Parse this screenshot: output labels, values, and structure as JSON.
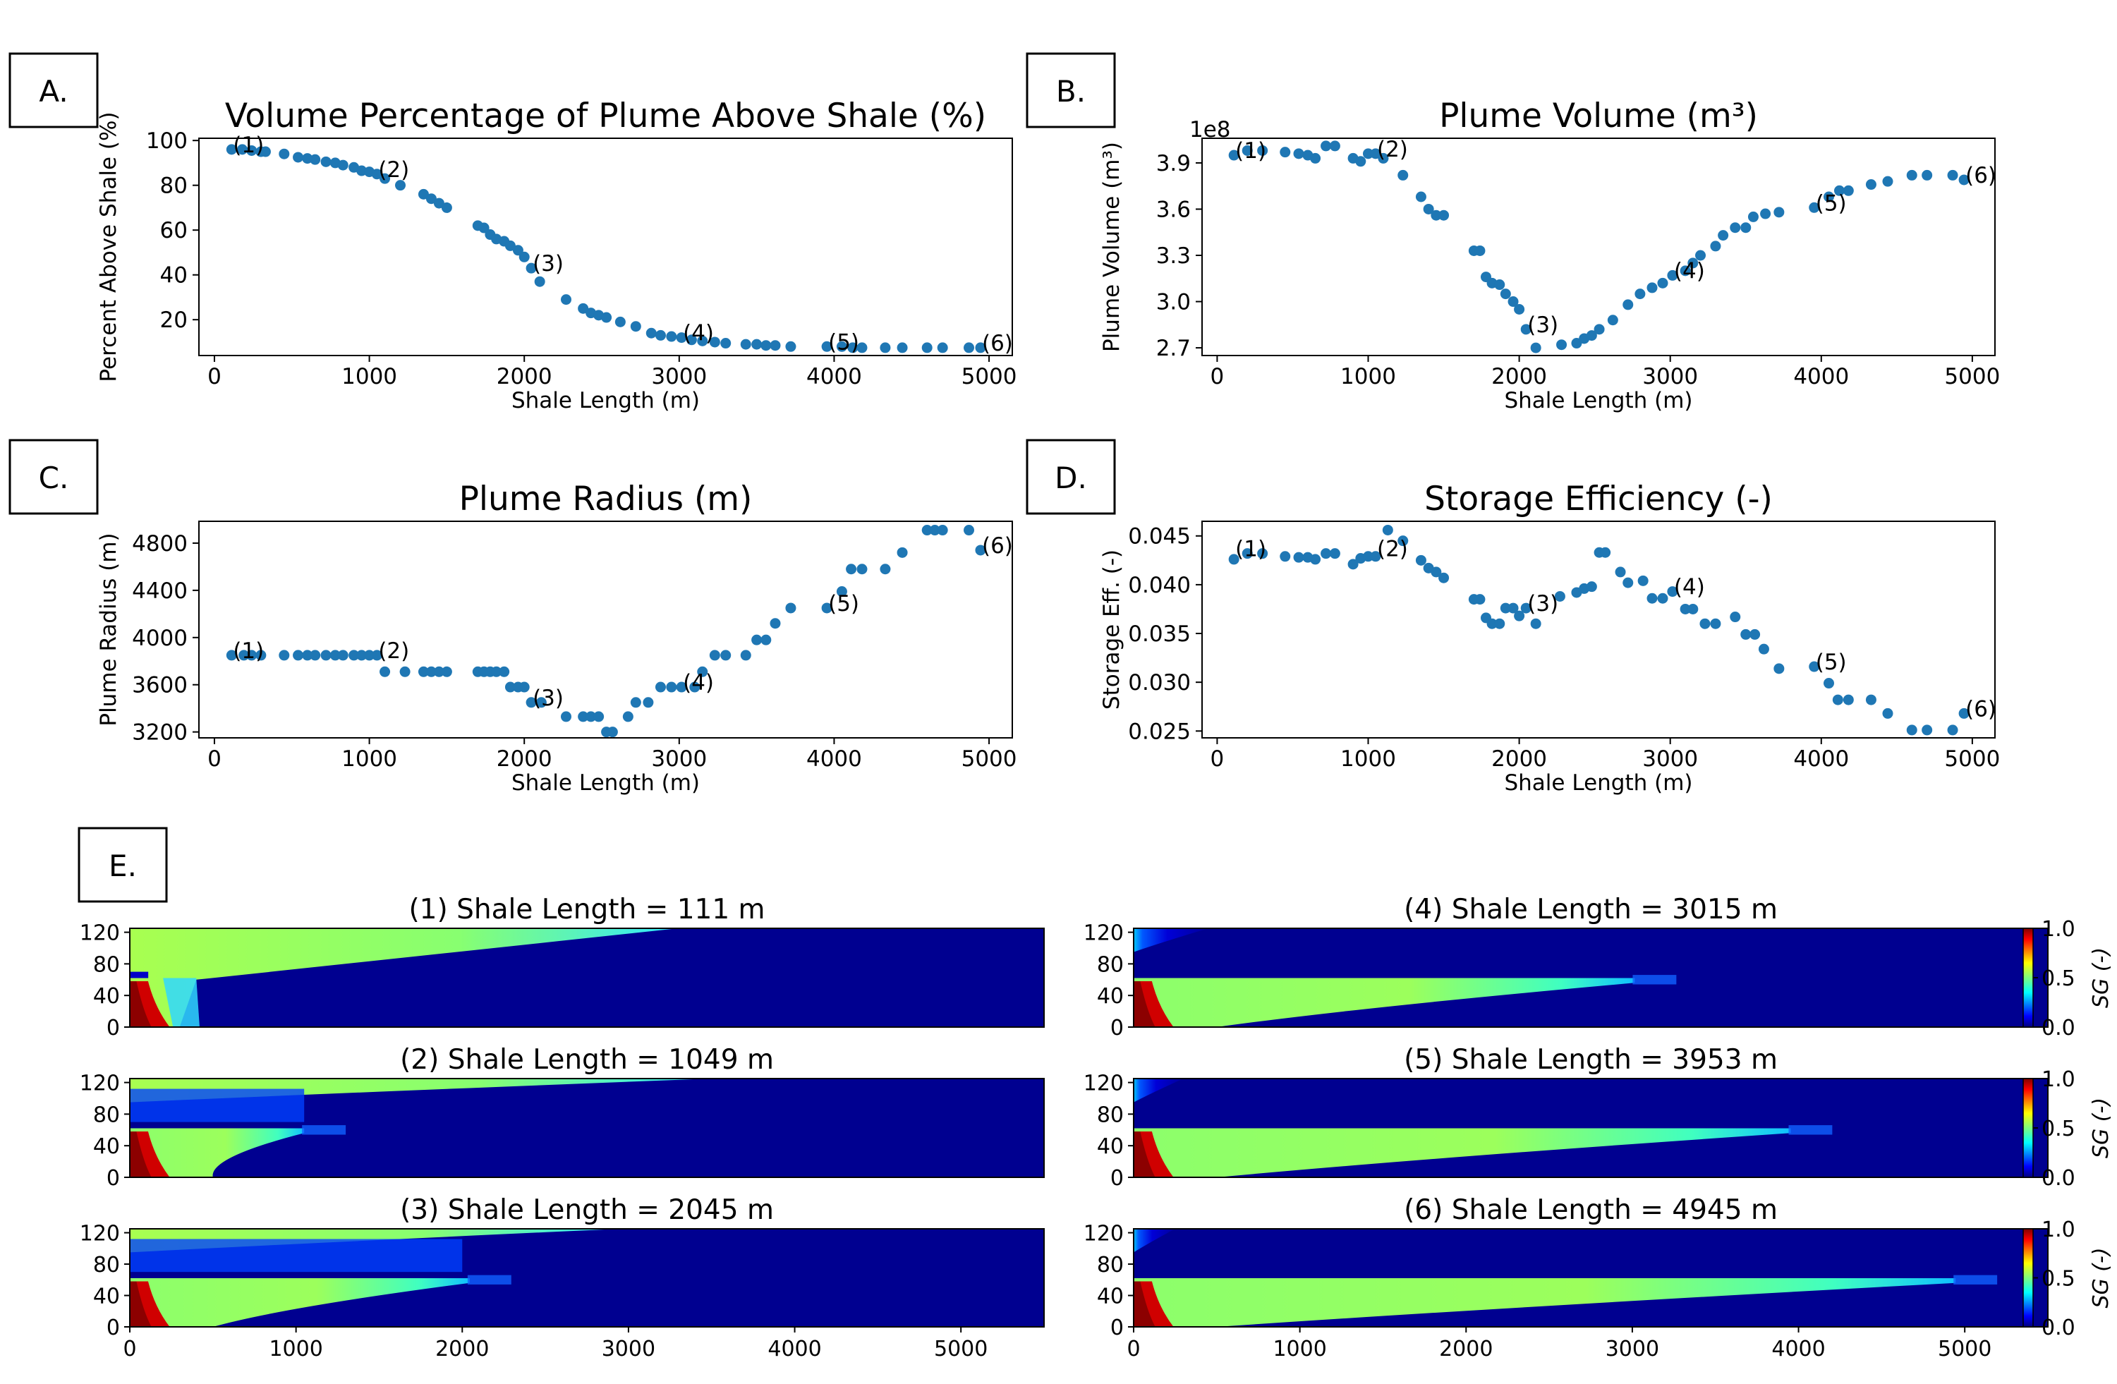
{
  "panel_labels": [
    "A.",
    "B.",
    "C.",
    "D.",
    "E."
  ],
  "colormap": [
    "#00007f",
    "#0000ff",
    "#007fff",
    "#00ffff",
    "#7fff7f",
    "#ffff00",
    "#ff7f00",
    "#ff0000",
    "#7f0000"
  ],
  "colorbar": {
    "label": "SG (-)",
    "ticks": [
      "0.0",
      "0.5",
      "1.0"
    ]
  },
  "chart_data": [
    {
      "type": "scatter",
      "title": "Volume Percentage of Plume Above Shale (%)",
      "xlabel": "Shale Length (m)",
      "ylabel": "Percent Above Shale (%)",
      "xlim": [
        -100,
        5150
      ],
      "ylim": [
        4,
        101
      ],
      "xticks": [
        0,
        1000,
        2000,
        3000,
        4000,
        5000
      ],
      "yticks": [
        20,
        40,
        60,
        80,
        100
      ],
      "color": "#1f77b4",
      "x": [
        111,
        180,
        240,
        300,
        330,
        450,
        540,
        600,
        650,
        720,
        780,
        830,
        900,
        950,
        1000,
        1049,
        1100,
        1200,
        1350,
        1400,
        1450,
        1500,
        1700,
        1740,
        1780,
        1820,
        1870,
        1910,
        1960,
        2000,
        2045,
        2100,
        2270,
        2380,
        2430,
        2480,
        2530,
        2620,
        2720,
        2820,
        2880,
        2950,
        3015,
        3080,
        3150,
        3230,
        3300,
        3430,
        3500,
        3560,
        3620,
        3720,
        3953,
        4050,
        4120,
        4180,
        4330,
        4440,
        4600,
        4700,
        4870,
        4945
      ],
      "y": [
        96,
        96,
        95.5,
        95,
        95,
        94,
        92.5,
        92,
        91.5,
        90.5,
        90,
        89,
        88,
        86.5,
        86,
        85,
        83,
        80,
        76,
        74,
        72,
        70,
        62,
        61,
        58,
        56,
        55,
        53,
        51,
        48,
        43,
        37,
        29,
        25,
        23,
        22,
        21,
        19,
        17,
        14,
        13,
        12.5,
        12,
        11,
        10.5,
        10,
        9.5,
        9,
        9,
        8.5,
        8.5,
        8,
        8,
        8,
        7.5,
        7.5,
        7.5,
        7.5,
        7.5,
        7.5,
        7.5,
        7.5
      ],
      "annotations": [
        {
          "text": "(1)",
          "x": 111,
          "y": 96
        },
        {
          "text": "(2)",
          "x": 1049,
          "y": 85
        },
        {
          "text": "(3)",
          "x": 2045,
          "y": 43
        },
        {
          "text": "(4)",
          "x": 3015,
          "y": 12
        },
        {
          "text": "(5)",
          "x": 3953,
          "y": 8
        },
        {
          "text": "(6)",
          "x": 4945,
          "y": 7.5
        }
      ]
    },
    {
      "type": "scatter",
      "title": "Plume Volume (m³)",
      "offset_text": "1e8",
      "xlabel": "Shale Length (m)",
      "ylabel": "Plume Volume (m³)",
      "xlim": [
        -100,
        5150
      ],
      "ylim": [
        2.65,
        4.06
      ],
      "xticks": [
        0,
        1000,
        2000,
        3000,
        4000,
        5000
      ],
      "yticks": [
        2.7,
        3.0,
        3.3,
        3.6,
        3.9
      ],
      "ytick_labels": [
        "2.7",
        "3.0",
        "3.3",
        "3.6",
        "3.9"
      ],
      "color": "#1f77b4",
      "x": [
        111,
        200,
        300,
        450,
        540,
        600,
        650,
        720,
        780,
        900,
        950,
        1000,
        1049,
        1100,
        1230,
        1350,
        1400,
        1450,
        1500,
        1700,
        1740,
        1780,
        1820,
        1870,
        1910,
        1960,
        2000,
        2045,
        2110,
        2280,
        2380,
        2430,
        2480,
        2530,
        2620,
        2720,
        2800,
        2880,
        2950,
        3015,
        3100,
        3150,
        3200,
        3300,
        3350,
        3430,
        3500,
        3550,
        3630,
        3720,
        3953,
        4050,
        4120,
        4180,
        4330,
        4440,
        4600,
        4700,
        4870,
        4945
      ],
      "y": [
        3.95,
        3.98,
        3.98,
        3.97,
        3.96,
        3.95,
        3.93,
        4.01,
        4.01,
        3.93,
        3.91,
        3.96,
        3.96,
        3.93,
        3.82,
        3.68,
        3.6,
        3.56,
        3.56,
        3.33,
        3.33,
        3.16,
        3.12,
        3.11,
        3.05,
        3.0,
        2.95,
        2.82,
        2.7,
        2.72,
        2.73,
        2.76,
        2.78,
        2.82,
        2.88,
        2.98,
        3.05,
        3.09,
        3.12,
        3.17,
        3.2,
        3.25,
        3.3,
        3.36,
        3.43,
        3.48,
        3.48,
        3.55,
        3.57,
        3.58,
        3.61,
        3.68,
        3.72,
        3.72,
        3.76,
        3.78,
        3.82,
        3.82,
        3.82,
        3.79
      ],
      "annotations": [
        {
          "text": "(1)",
          "x": 111,
          "y": 3.95
        },
        {
          "text": "(2)",
          "x": 1049,
          "y": 3.96
        },
        {
          "text": "(3)",
          "x": 2045,
          "y": 2.82
        },
        {
          "text": "(4)",
          "x": 3015,
          "y": 3.17
        },
        {
          "text": "(5)",
          "x": 3953,
          "y": 3.61
        },
        {
          "text": "(6)",
          "x": 4945,
          "y": 3.79
        }
      ]
    },
    {
      "type": "scatter",
      "title": "Plume Radius (m)",
      "xlabel": "Shale Length (m)",
      "ylabel": "Plume Radius (m)",
      "xlim": [
        -100,
        5150
      ],
      "ylim": [
        3150,
        4985
      ],
      "xticks": [
        0,
        1000,
        2000,
        3000,
        4000,
        5000
      ],
      "yticks": [
        3200,
        3600,
        4000,
        4400,
        4800
      ],
      "color": "#1f77b4",
      "x": [
        111,
        190,
        240,
        300,
        450,
        540,
        600,
        650,
        720,
        780,
        830,
        900,
        950,
        1000,
        1049,
        1100,
        1230,
        1350,
        1400,
        1450,
        1500,
        1700,
        1740,
        1780,
        1820,
        1870,
        1910,
        1960,
        2000,
        2045,
        2110,
        2270,
        2380,
        2430,
        2480,
        2530,
        2570,
        2670,
        2720,
        2800,
        2880,
        2950,
        3015,
        3100,
        3150,
        3230,
        3300,
        3430,
        3500,
        3560,
        3620,
        3720,
        3953,
        4050,
        4110,
        4180,
        4330,
        4440,
        4600,
        4650,
        4700,
        4870,
        4945
      ],
      "y": [
        3850,
        3850,
        3850,
        3850,
        3850,
        3850,
        3850,
        3850,
        3850,
        3850,
        3850,
        3850,
        3850,
        3850,
        3850,
        3710,
        3710,
        3710,
        3710,
        3710,
        3710,
        3710,
        3710,
        3710,
        3710,
        3710,
        3580,
        3580,
        3580,
        3450,
        3450,
        3330,
        3330,
        3330,
        3330,
        3200,
        3200,
        3330,
        3450,
        3450,
        3580,
        3580,
        3580,
        3580,
        3710,
        3850,
        3850,
        3850,
        3980,
        3980,
        4120,
        4250,
        4250,
        4390,
        4580,
        4580,
        4580,
        4720,
        4910,
        4910,
        4910,
        4910,
        4740
      ],
      "annotations": [
        {
          "text": "(1)",
          "x": 111,
          "y": 3850
        },
        {
          "text": "(2)",
          "x": 1049,
          "y": 3850
        },
        {
          "text": "(3)",
          "x": 2045,
          "y": 3450
        },
        {
          "text": "(4)",
          "x": 3015,
          "y": 3580
        },
        {
          "text": "(5)",
          "x": 3953,
          "y": 4250
        },
        {
          "text": "(6)",
          "x": 4945,
          "y": 4740
        }
      ]
    },
    {
      "type": "scatter",
      "title": "Storage Efficiency (-)",
      "xlabel": "Shale Length (m)",
      "ylabel": "Storage Eff. (-)",
      "xlim": [
        -100,
        5150
      ],
      "ylim": [
        0.0243,
        0.0465
      ],
      "xticks": [
        0,
        1000,
        2000,
        3000,
        4000,
        5000
      ],
      "yticks": [
        0.025,
        0.03,
        0.035,
        0.04,
        0.045
      ],
      "ytick_labels": [
        "0.025",
        "0.030",
        "0.035",
        "0.040",
        "0.045"
      ],
      "color": "#1f77b4",
      "x": [
        111,
        200,
        300,
        450,
        540,
        600,
        650,
        720,
        780,
        900,
        950,
        1000,
        1049,
        1130,
        1230,
        1350,
        1400,
        1450,
        1500,
        1700,
        1740,
        1780,
        1820,
        1870,
        1910,
        1960,
        2000,
        2045,
        2110,
        2270,
        2380,
        2430,
        2480,
        2530,
        2570,
        2670,
        2720,
        2820,
        2880,
        2950,
        3015,
        3100,
        3150,
        3230,
        3300,
        3430,
        3500,
        3560,
        3620,
        3720,
        3953,
        4050,
        4110,
        4180,
        4330,
        4440,
        4600,
        4700,
        4870,
        4945
      ],
      "y": [
        0.0426,
        0.0432,
        0.0432,
        0.0429,
        0.0428,
        0.0428,
        0.0426,
        0.0432,
        0.0432,
        0.0421,
        0.0427,
        0.0429,
        0.0429,
        0.0456,
        0.0445,
        0.0425,
        0.0417,
        0.0413,
        0.0407,
        0.0385,
        0.0385,
        0.0366,
        0.036,
        0.036,
        0.0376,
        0.0376,
        0.0368,
        0.0376,
        0.036,
        0.0388,
        0.0392,
        0.0396,
        0.0398,
        0.0433,
        0.0433,
        0.0413,
        0.0402,
        0.0404,
        0.0386,
        0.0386,
        0.0393,
        0.0375,
        0.0375,
        0.036,
        0.036,
        0.0367,
        0.0349,
        0.0349,
        0.0334,
        0.0314,
        0.0316,
        0.0299,
        0.0282,
        0.0282,
        0.0282,
        0.0268,
        0.0251,
        0.0251,
        0.0251,
        0.0268
      ],
      "annotations": [
        {
          "text": "(1)",
          "x": 111,
          "y": 0.0432
        },
        {
          "text": "(2)",
          "x": 1049,
          "y": 0.0432
        },
        {
          "text": "(3)",
          "x": 2045,
          "y": 0.0376
        },
        {
          "text": "(4)",
          "x": 3015,
          "y": 0.0393
        },
        {
          "text": "(5)",
          "x": 3953,
          "y": 0.0316
        },
        {
          "text": "(6)",
          "x": 4945,
          "y": 0.0268
        }
      ]
    },
    {
      "type": "heatmap",
      "panel": "E",
      "xlim": [
        0,
        5500
      ],
      "ylim": [
        0,
        125
      ],
      "xticks": [
        0,
        1000,
        2000,
        3000,
        4000,
        5000
      ],
      "yticks": [
        0,
        40,
        80,
        120
      ],
      "colorbar_range": [
        0.0,
        1.0
      ],
      "subplots": [
        {
          "title": "(1) Shale Length = 111 m",
          "shale_length": 111,
          "top_plume_reach": 3300
        },
        {
          "title": "(2) Shale Length = 1049 m",
          "shale_length": 1049,
          "top_plume_reach": 3500
        },
        {
          "title": "(3) Shale Length = 2045 m",
          "shale_length": 2045,
          "top_plume_reach": 2950
        },
        {
          "title": "(4) Shale Length = 3015 m",
          "shale_length": 3015,
          "top_plume_reach": 450
        },
        {
          "title": "(5) Shale Length = 3953 m",
          "shale_length": 3953,
          "top_plume_reach": 300
        },
        {
          "title": "(6) Shale Length = 4945 m",
          "shale_length": 4945,
          "top_plume_reach": 250
        }
      ]
    }
  ]
}
